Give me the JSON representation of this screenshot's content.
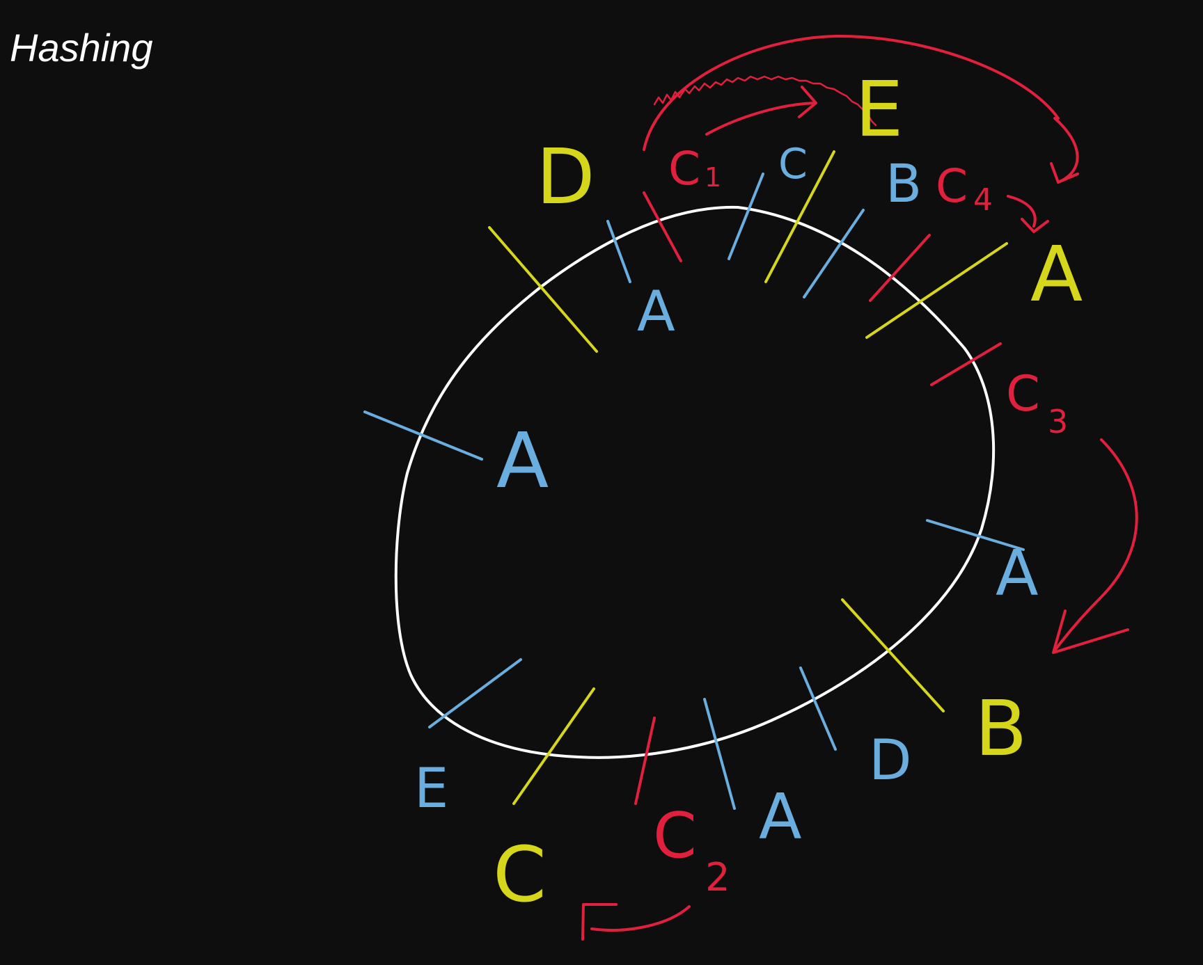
{
  "title": "Hashing",
  "colors": {
    "background": "#0e0e0e",
    "ring": "#ffffff",
    "server": "#d6d61a",
    "virtual_node": "#6aaee0",
    "client": "#e0203c"
  },
  "labels": {
    "server_D_top": "D",
    "server_E_top": "E",
    "server_A_right": "A",
    "server_B_bottom": "B",
    "server_C_bottom": "C",
    "vnode_A_top": "A",
    "vnode_C_top": "C",
    "vnode_B_top": "B",
    "vnode_A_left": "A",
    "vnode_A_right": "A",
    "vnode_D_bottom": "D",
    "vnode_A_bottom": "A",
    "vnode_E_bottom": "E",
    "client_c1": "C",
    "client_c1_sub": "1",
    "client_c2": "C",
    "client_c2_sub": "2",
    "client_c3": "C",
    "client_c3_sub": "3",
    "client_c4": "C",
    "client_c4_sub": "4"
  }
}
